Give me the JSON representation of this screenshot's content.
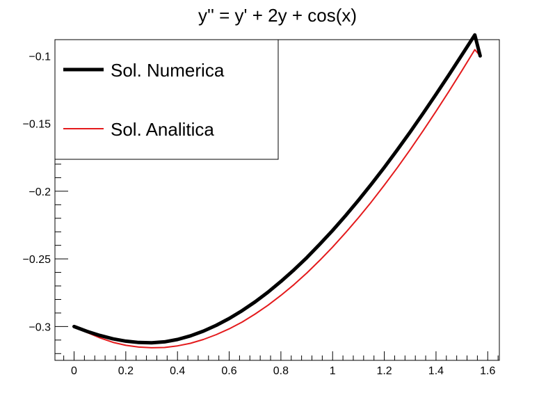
{
  "chart_data": {
    "type": "line",
    "title": "y'' = y' + 2y + cos(x)",
    "xlabel": "",
    "ylabel": "",
    "xlim": [
      -0.074,
      1.645
    ],
    "ylim": [
      -0.325,
      -0.088
    ],
    "grid": false,
    "legend_position": "top-left",
    "x_ticks": [
      {
        "value": 0,
        "label": "0"
      },
      {
        "value": 0.2,
        "label": "0.2"
      },
      {
        "value": 0.4,
        "label": "0.4"
      },
      {
        "value": 0.6,
        "label": "0.6"
      },
      {
        "value": 0.8,
        "label": "0.8"
      },
      {
        "value": 1.0,
        "label": "1"
      },
      {
        "value": 1.2,
        "label": "1.2"
      },
      {
        "value": 1.4,
        "label": "1.4"
      },
      {
        "value": 1.6,
        "label": "1.6"
      }
    ],
    "y_ticks": [
      {
        "value": -0.1,
        "label": "−0.1"
      },
      {
        "value": -0.15,
        "label": "−0.15"
      },
      {
        "value": -0.2,
        "label": "−0.2"
      },
      {
        "value": -0.25,
        "label": "−0.25"
      },
      {
        "value": -0.3,
        "label": "−0.3"
      }
    ],
    "series": [
      {
        "name": "Sol. Numerica",
        "color": "#000000",
        "x": [
          0,
          0.05,
          0.1,
          0.15,
          0.2,
          0.25,
          0.3,
          0.35,
          0.4,
          0.45,
          0.5,
          0.55,
          0.6,
          0.65,
          0.7,
          0.75,
          0.8,
          0.85,
          0.9,
          0.95,
          1.0,
          1.05,
          1.1,
          1.15,
          1.2,
          1.25,
          1.3,
          1.35,
          1.4,
          1.45,
          1.5,
          1.55,
          1.5708
        ],
        "y": [
          -0.3,
          -0.3036,
          -0.3066,
          -0.3091,
          -0.3108,
          -0.3118,
          -0.312,
          -0.3113,
          -0.3096,
          -0.3069,
          -0.3034,
          -0.2991,
          -0.2941,
          -0.2883,
          -0.2818,
          -0.2746,
          -0.2667,
          -0.2582,
          -0.2491,
          -0.2393,
          -0.229,
          -0.2181,
          -0.2067,
          -0.1948,
          -0.1824,
          -0.1695,
          -0.1562,
          -0.1425,
          -0.1284,
          -0.114,
          -0.0993,
          -0.0845,
          -0.1
        ]
      },
      {
        "name": "Sol. Analitica",
        "color": "#e41a1c",
        "x": [
          0,
          0.05,
          0.1,
          0.15,
          0.2,
          0.25,
          0.3,
          0.35,
          0.4,
          0.45,
          0.5,
          0.55,
          0.6,
          0.65,
          0.7,
          0.75,
          0.8,
          0.85,
          0.9,
          0.95,
          1.0,
          1.05,
          1.1,
          1.15,
          1.2,
          1.25,
          1.3,
          1.35,
          1.4,
          1.45,
          1.5,
          1.55,
          1.5708
        ],
        "y": [
          -0.3,
          -0.3044,
          -0.3084,
          -0.3117,
          -0.3139,
          -0.3152,
          -0.3157,
          -0.3155,
          -0.3143,
          -0.3124,
          -0.3096,
          -0.306,
          -0.3017,
          -0.2967,
          -0.2908,
          -0.2843,
          -0.277,
          -0.2691,
          -0.2605,
          -0.2512,
          -0.2413,
          -0.2307,
          -0.2196,
          -0.2079,
          -0.1955,
          -0.1827,
          -0.1693,
          -0.1554,
          -0.141,
          -0.1262,
          -0.111,
          -0.0954,
          -0.1
        ]
      }
    ]
  }
}
